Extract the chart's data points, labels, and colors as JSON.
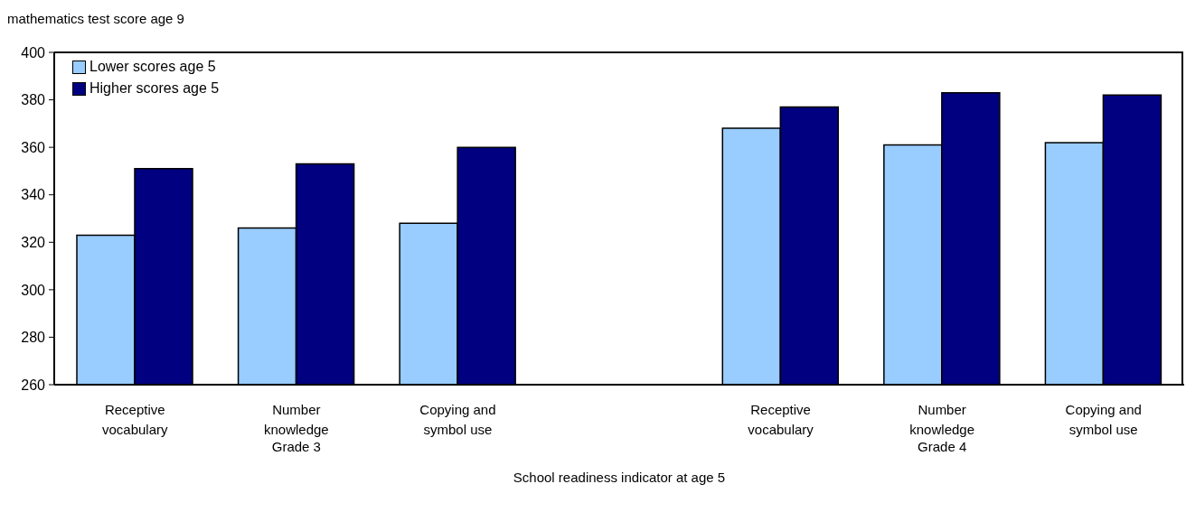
{
  "chart_data": {
    "type": "bar",
    "ylabel": "mathematics test score age 9",
    "xlabel": "School readiness indicator at age 5",
    "categories": [
      "Receptive vocabulary",
      "Number knowledge",
      "Copying and symbol use",
      null,
      "Receptive vocabulary",
      "Number knowledge",
      "Copying and symbol use"
    ],
    "annotations": [
      "Grade 3",
      "Grade 4"
    ],
    "series": [
      {
        "name": "Lower scores age 5",
        "color": "#99ccff",
        "values": [
          323,
          326,
          328,
          null,
          368,
          361,
          362
        ]
      },
      {
        "name": "Higher scores age 5",
        "color": "#000080",
        "values": [
          351,
          353,
          360,
          null,
          377,
          383,
          382
        ]
      }
    ],
    "ylim": [
      260,
      400
    ],
    "yticks": [
      260,
      280,
      300,
      320,
      340,
      360,
      380,
      400
    ],
    "grid": false,
    "legend": "top left"
  }
}
